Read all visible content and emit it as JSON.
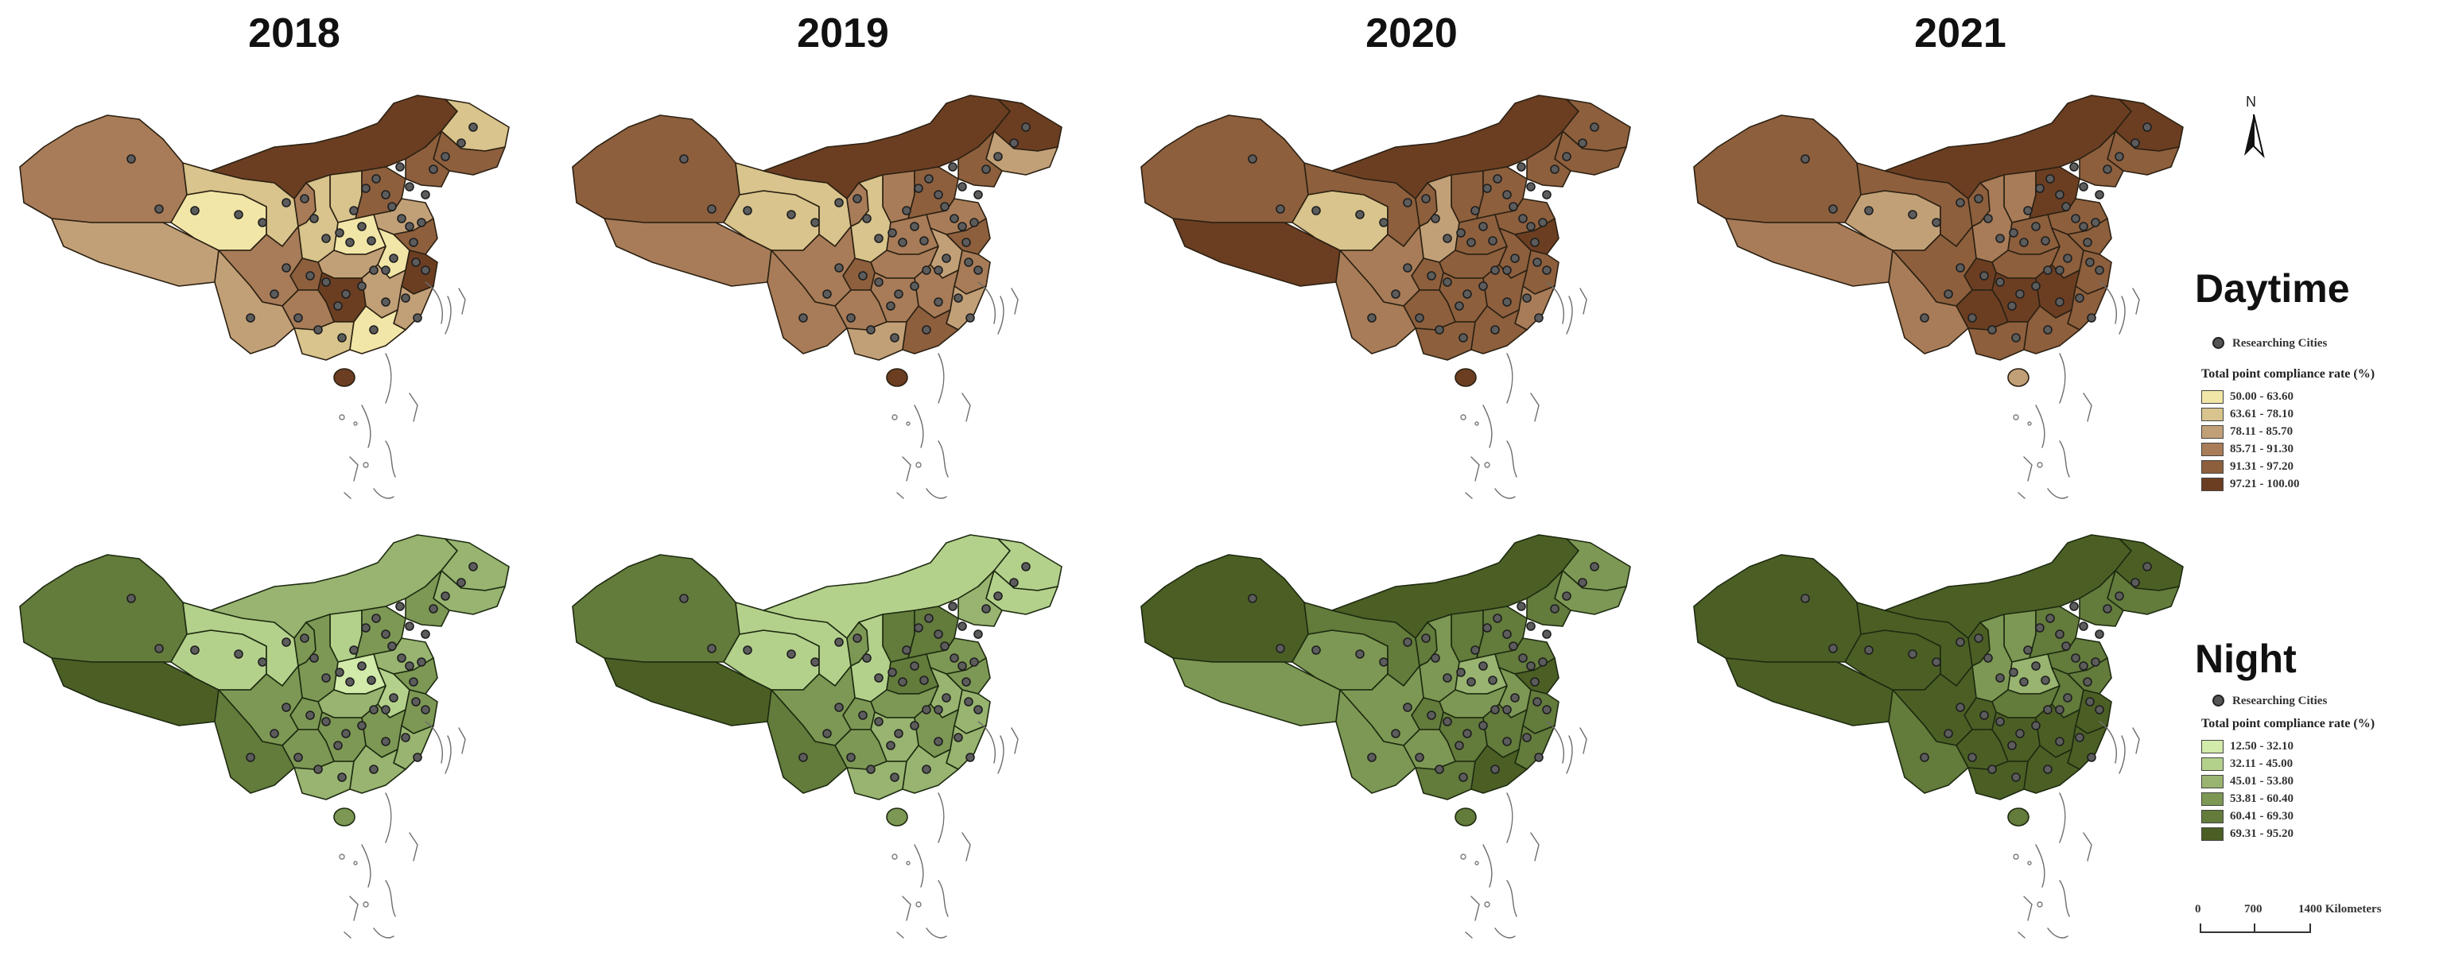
{
  "years": [
    "2018",
    "2019",
    "2020",
    "2021"
  ],
  "legend_common": {
    "cities_label": "Researching Cities",
    "heading": "Total point compliance rate (%)"
  },
  "daytime": {
    "title": "Daytime",
    "classes": [
      {
        "label": "50.00 - 63.60",
        "color": "#f1e6a7"
      },
      {
        "label": "63.61 - 78.10",
        "color": "#d8c48c"
      },
      {
        "label": "78.11 - 85.70",
        "color": "#c2a077"
      },
      {
        "label": "85.71 - 91.30",
        "color": "#a87c58"
      },
      {
        "label": "91.31 - 97.20",
        "color": "#8d5f3d"
      },
      {
        "label": "97.21 - 100.00",
        "color": "#6b3e22"
      }
    ],
    "maps": [
      {
        "year": "2018",
        "provinces": {
          "XJ": 3,
          "XZ": 2,
          "QH": 0,
          "GS": 1,
          "NM": 5,
          "HLJ": 1,
          "JL": 4,
          "LN": 4,
          "HEB": 4,
          "SX": 1,
          "SN": 1,
          "HEN": 0,
          "SD": 2,
          "JS": 4,
          "ZJ": 5,
          "FJ": 2,
          "JX": 2,
          "HUN": 5,
          "HUB": 2,
          "AH": 0,
          "SC": 3,
          "CQ": 4,
          "GZ": 3,
          "YN": 2,
          "GX": 1,
          "GD": 0,
          "HI": 5,
          "NX": 3
        }
      },
      {
        "year": "2019",
        "provinces": {
          "XJ": 4,
          "XZ": 3,
          "QH": 1,
          "GS": 1,
          "NM": 5,
          "HLJ": 5,
          "JL": 2,
          "LN": 4,
          "HEB": 4,
          "SX": 3,
          "SN": 1,
          "HEN": 3,
          "SD": 3,
          "JS": 4,
          "ZJ": 3,
          "FJ": 2,
          "JX": 3,
          "HUN": 3,
          "HUB": 3,
          "AH": 2,
          "SC": 3,
          "CQ": 4,
          "GZ": 3,
          "YN": 3,
          "GX": 2,
          "GD": 4,
          "HI": 5,
          "NX": 3
        }
      },
      {
        "year": "2020",
        "provinces": {
          "XJ": 4,
          "XZ": 5,
          "QH": 1,
          "GS": 4,
          "NM": 5,
          "HLJ": 4,
          "JL": 4,
          "LN": 4,
          "HEB": 4,
          "SX": 4,
          "SN": 2,
          "HEN": 4,
          "SD": 4,
          "JS": 5,
          "ZJ": 4,
          "FJ": 3,
          "JX": 4,
          "HUN": 4,
          "HUB": 4,
          "AH": 4,
          "SC": 3,
          "CQ": 4,
          "GZ": 4,
          "YN": 3,
          "GX": 4,
          "GD": 4,
          "HI": 5,
          "NX": 4
        }
      },
      {
        "year": "2021",
        "provinces": {
          "XJ": 4,
          "XZ": 3,
          "QH": 2,
          "GS": 4,
          "NM": 5,
          "HLJ": 5,
          "JL": 4,
          "LN": 4,
          "HEB": 5,
          "SX": 3,
          "SN": 3,
          "HEN": 4,
          "SD": 4,
          "JS": 4,
          "ZJ": 4,
          "FJ": 4,
          "JX": 5,
          "HUN": 5,
          "HUB": 4,
          "AH": 4,
          "SC": 4,
          "CQ": 5,
          "GZ": 5,
          "YN": 3,
          "GX": 4,
          "GD": 4,
          "HI": 2,
          "NX": 4
        }
      }
    ]
  },
  "night": {
    "title": "Night",
    "classes": [
      {
        "label": "12.50 - 32.10",
        "color": "#d2eaaa"
      },
      {
        "label": "32.11 - 45.00",
        "color": "#b4d18c"
      },
      {
        "label": "45.01 - 53.80",
        "color": "#98b470"
      },
      {
        "label": "53.81 - 60.40",
        "color": "#7d9854"
      },
      {
        "label": "60.41 - 69.30",
        "color": "#637b3b"
      },
      {
        "label": "69.31 - 95.20",
        "color": "#4b5f25"
      }
    ],
    "maps": [
      {
        "year": "2018",
        "provinces": {
          "XJ": 4,
          "XZ": 5,
          "QH": 1,
          "GS": 1,
          "NM": 2,
          "HLJ": 2,
          "JL": 2,
          "LN": 3,
          "HEB": 3,
          "SX": 1,
          "SN": 3,
          "HEN": 0,
          "SD": 2,
          "JS": 3,
          "ZJ": 3,
          "FJ": 2,
          "JX": 3,
          "HUN": 3,
          "HUB": 2,
          "AH": 1,
          "SC": 3,
          "CQ": 3,
          "GZ": 3,
          "YN": 4,
          "GX": 2,
          "GD": 2,
          "HI": 3,
          "NX": 3
        }
      },
      {
        "year": "2019",
        "provinces": {
          "XJ": 4,
          "XZ": 5,
          "QH": 1,
          "GS": 1,
          "NM": 1,
          "HLJ": 1,
          "JL": 1,
          "LN": 2,
          "HEB": 4,
          "SX": 4,
          "SN": 1,
          "HEN": 4,
          "SD": 3,
          "JS": 3,
          "ZJ": 2,
          "FJ": 2,
          "JX": 3,
          "HUN": 2,
          "HUB": 3,
          "AH": 2,
          "SC": 3,
          "CQ": 3,
          "GZ": 3,
          "YN": 4,
          "GX": 2,
          "GD": 2,
          "HI": 3,
          "NX": 3
        }
      },
      {
        "year": "2020",
        "provinces": {
          "XJ": 5,
          "XZ": 3,
          "QH": 3,
          "GS": 4,
          "NM": 5,
          "HLJ": 3,
          "JL": 3,
          "LN": 4,
          "HEB": 4,
          "SX": 4,
          "SN": 3,
          "HEN": 2,
          "SD": 4,
          "JS": 5,
          "ZJ": 4,
          "FJ": 4,
          "JX": 4,
          "HUN": 4,
          "HUB": 3,
          "AH": 3,
          "SC": 3,
          "CQ": 4,
          "GZ": 3,
          "YN": 3,
          "GX": 4,
          "GD": 5,
          "HI": 4,
          "NX": 4
        }
      },
      {
        "year": "2021",
        "provinces": {
          "XJ": 5,
          "XZ": 5,
          "QH": 5,
          "GS": 5,
          "NM": 5,
          "HLJ": 5,
          "JL": 4,
          "LN": 4,
          "HEB": 4,
          "SX": 3,
          "SN": 3,
          "HEN": 2,
          "SD": 4,
          "JS": 4,
          "ZJ": 5,
          "FJ": 5,
          "JX": 5,
          "HUN": 5,
          "HUB": 4,
          "AH": 4,
          "SC": 5,
          "CQ": 5,
          "GZ": 5,
          "YN": 4,
          "GX": 5,
          "GD": 5,
          "HI": 4,
          "NX": 5
        }
      }
    ]
  },
  "scale_bar": {
    "labels": [
      "0",
      "700",
      "1400 Kilometers"
    ]
  },
  "north_arrow": {
    "label": "N",
    "icon": "north-arrow-icon"
  }
}
